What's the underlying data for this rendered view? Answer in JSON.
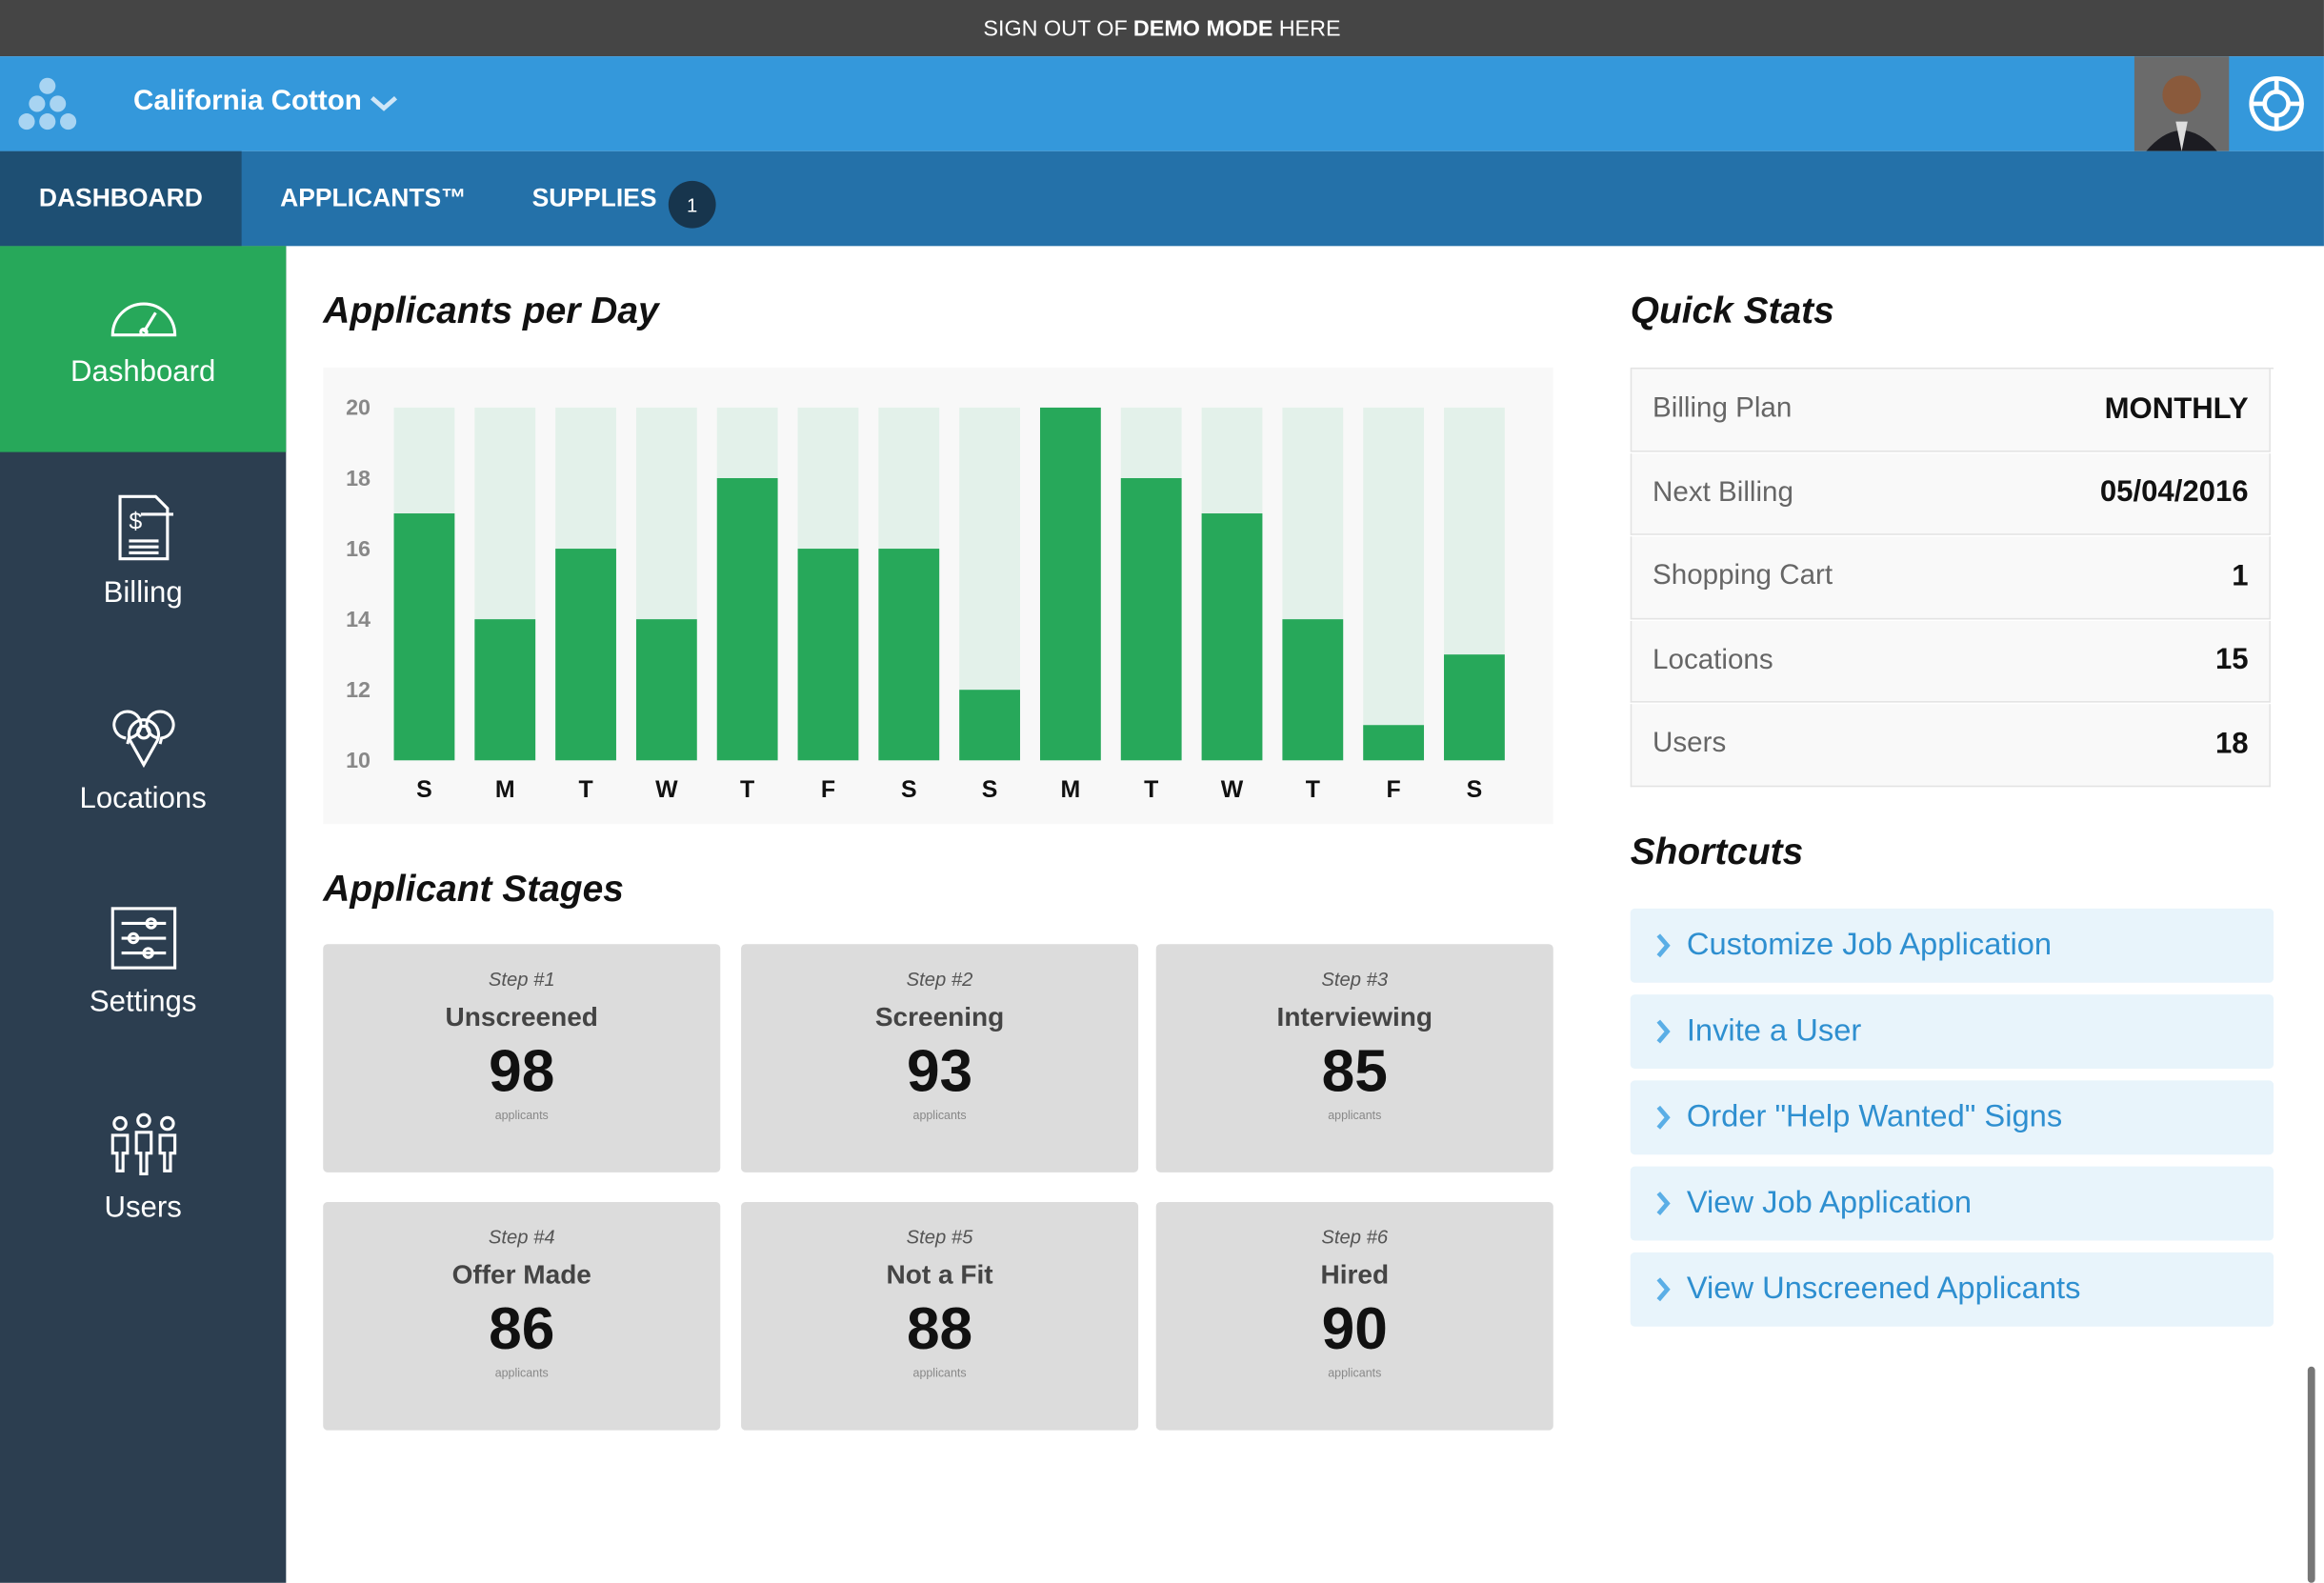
{
  "banner": {
    "before": "SIGN OUT OF",
    "strong": "DEMO MODE",
    "after": "HERE"
  },
  "header": {
    "company": "California Cotton"
  },
  "nav": {
    "items": [
      "DASHBOARD",
      "APPLICANTS™",
      "SUPPLIES"
    ],
    "supplies_badge": 1
  },
  "sidebar": {
    "items": [
      "Dashboard",
      "Billing",
      "Locations",
      "Settings",
      "Users"
    ]
  },
  "chart_data": {
    "type": "bar",
    "title": "Applicants per Day",
    "categories": [
      "S",
      "M",
      "T",
      "W",
      "T",
      "F",
      "S",
      "S",
      "M",
      "T",
      "W",
      "T",
      "F",
      "S"
    ],
    "values": [
      17,
      14,
      16,
      14,
      18,
      16,
      16,
      12,
      20,
      18,
      17,
      14,
      11,
      13
    ],
    "color": "#27a85a",
    "track_color": "#e3f1ea",
    "ylim": [
      10,
      20
    ],
    "yticks": [
      10,
      12,
      14,
      16,
      18,
      20
    ],
    "grid": false
  },
  "stages": {
    "title": "Applicant Stages",
    "cards": [
      {
        "step": "Step #1",
        "name": "Unscreened",
        "count": 98,
        "unit": "applicants"
      },
      {
        "step": "Step #2",
        "name": "Screening",
        "count": 93,
        "unit": "applicants"
      },
      {
        "step": "Step #3",
        "name": "Interviewing",
        "count": 85,
        "unit": "applicants"
      },
      {
        "step": "Step #4",
        "name": "Offer Made",
        "count": 86,
        "unit": "applicants"
      },
      {
        "step": "Step #5",
        "name": "Not a Fit",
        "count": 88,
        "unit": "applicants"
      },
      {
        "step": "Step #6",
        "name": "Hired",
        "count": 90,
        "unit": "applicants"
      }
    ]
  },
  "quick_stats": {
    "title": "Quick Stats",
    "rows": [
      [
        "Billing Plan",
        "MONTHLY"
      ],
      [
        "Next Billing",
        "05/04/2016"
      ],
      [
        "Shopping Cart",
        1
      ],
      [
        "Locations",
        15
      ],
      [
        "Users",
        18
      ]
    ]
  },
  "shortcuts": {
    "title": "Shortcuts",
    "items": [
      "Customize Job Application",
      "Invite a User",
      "Order \"Help Wanted\" Signs",
      "View Job Application",
      "View Unscreened Applicants"
    ]
  }
}
